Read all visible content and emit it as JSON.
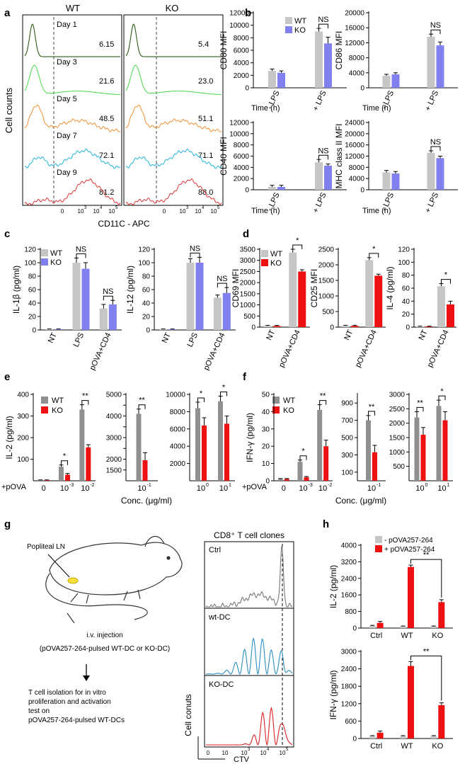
{
  "panel_labels": {
    "a": "a",
    "b": "b",
    "c": "c",
    "d": "d",
    "e": "e",
    "f": "f",
    "g": "g",
    "h": "h"
  },
  "colors": {
    "wt": "#c6c6c6",
    "ko_blue": "#8080ee",
    "ko_red": "#ee1111",
    "wt_dark": "#909090",
    "day1": "#2e5a14",
    "day3": "#55dd55",
    "day5": "#ee9944",
    "day7": "#33bbdd",
    "day9": "#dd4444"
  },
  "panel_a": {
    "col_titles": [
      "WT",
      "KO"
    ],
    "y_title": "Cell counts",
    "x_title": "CD11C - APC",
    "x_ticks": [
      "0",
      "10",
      "10",
      "10",
      "10"
    ],
    "x_exps": [
      "",
      "3",
      "4",
      "5"
    ],
    "rows": [
      {
        "day": "Day 1",
        "wt": "6.15",
        "ko": "5.4"
      },
      {
        "day": "Day 3",
        "wt": "21.6",
        "ko": "23.0"
      },
      {
        "day": "Day 5",
        "wt": "48.5",
        "ko": "51.1"
      },
      {
        "day": "Day 7",
        "wt": "72.1",
        "ko": "71.1"
      },
      {
        "day": "Day 9",
        "wt": "81.2",
        "ko": "88.0"
      }
    ]
  },
  "texts": {
    "time_h": "Time (h)",
    "nt": "NT",
    "lps": "LPS",
    "povacd4": "pOVA+CD4",
    "neg_lps": "- LPS",
    "pos_lps": "+ LPS",
    "plus_pova": "+pOVA",
    "conc": "Conc. (μg/ml)",
    "ctrl": "Ctrl",
    "wt": "WT",
    "ko": "KO"
  },
  "panel_g": {
    "popliteal": "Popliteal LN",
    "iv": "i.v. injection",
    "pulsed": "(pOVA257-264-pulsed WT-DC or KO-DC)",
    "tcell_lines": [
      "T cell isolation for in vitro",
      "proliferation and activation",
      "test on",
      "pOVA257-264-pulsed WT-DCs"
    ],
    "clones_title": "CD8⁺ T cell clones",
    "clone_labels": [
      "Ctrl",
      "wt-DC",
      "KO-DC"
    ],
    "y_title": "Cell conuts",
    "x_title": "CTV"
  },
  "chart_data": [
    {
      "id": "b1",
      "type": "bar",
      "ylabel": "CD80 MFI",
      "ylim": [
        0,
        12000
      ],
      "ticks": [
        0,
        2000,
        4000,
        6000,
        8000,
        10000,
        12000
      ],
      "categories": [
        "- LPS",
        "+ LPS"
      ],
      "series": [
        {
          "name": "WT",
          "values": [
            2700,
            9000
          ],
          "err": [
            300,
            500
          ]
        },
        {
          "name": "KO",
          "values": [
            2400,
            7100
          ],
          "err": [
            300,
            1000
          ]
        }
      ],
      "sig": [
        {
          "cat": 1,
          "label": "NS"
        }
      ]
    },
    {
      "id": "b2",
      "type": "bar",
      "ylabel": "CD86 MFI",
      "ylim": [
        0,
        20000
      ],
      "ticks": [
        0,
        4000,
        8000,
        12000,
        16000,
        20000
      ],
      "categories": [
        "- LPS",
        "+ LPS"
      ],
      "series": [
        {
          "name": "WT",
          "values": [
            3200,
            13600
          ],
          "err": [
            400,
            700
          ]
        },
        {
          "name": "KO",
          "values": [
            3600,
            11300
          ],
          "err": [
            400,
            900
          ]
        }
      ],
      "sig": [
        {
          "cat": 1,
          "label": "NS"
        }
      ]
    },
    {
      "id": "b3",
      "type": "bar",
      "ylabel": "CD40 MFI",
      "ylim": [
        0,
        12000
      ],
      "ticks": [
        0,
        2000,
        4000,
        6000,
        8000,
        10000,
        12000
      ],
      "categories": [
        "- LPS",
        "+ LPS"
      ],
      "series": [
        {
          "name": "WT",
          "values": [
            500,
            4900
          ],
          "err": [
            300,
            500
          ]
        },
        {
          "name": "KO",
          "values": [
            500,
            4300
          ],
          "err": [
            300,
            300
          ]
        }
      ],
      "sig": [
        {
          "cat": 1,
          "label": "NS"
        }
      ]
    },
    {
      "id": "b4",
      "type": "bar",
      "ylabel": "MHC class II  MFI",
      "ylim": [
        0,
        24000
      ],
      "ticks": [
        0,
        4000,
        8000,
        12000,
        16000,
        20000,
        24000
      ],
      "categories": [
        "- LPS",
        "+ LPS"
      ],
      "series": [
        {
          "name": "WT",
          "values": [
            6200,
            13200
          ],
          "err": [
            700,
            700
          ]
        },
        {
          "name": "KO",
          "values": [
            5800,
            11300
          ],
          "err": [
            700,
            700
          ]
        }
      ],
      "sig": [
        {
          "cat": 1,
          "label": "NS"
        }
      ]
    },
    {
      "id": "c1",
      "type": "bar",
      "ylabel": "IL-1β (pg/ml)",
      "ylim": [
        0,
        120
      ],
      "ticks": [
        0,
        20,
        40,
        60,
        80,
        100,
        120
      ],
      "categories": [
        "NT",
        "LPS",
        "pOVA+CD4"
      ],
      "series": [
        {
          "name": "WT",
          "values": [
            1,
            100,
            32
          ],
          "err": [
            0.5,
            7,
            6
          ]
        },
        {
          "name": "KO",
          "values": [
            1,
            91,
            38
          ],
          "err": [
            0.5,
            9,
            6
          ]
        }
      ],
      "sig": [
        {
          "cat": 1,
          "label": "NS"
        },
        {
          "cat": 2,
          "label": "NS"
        }
      ]
    },
    {
      "id": "c2",
      "type": "bar",
      "ylabel": "IL-12 (pg/ml)",
      "ylim": [
        0,
        120
      ],
      "ticks": [
        0,
        20,
        40,
        60,
        80,
        100,
        120
      ],
      "categories": [
        "NT",
        "LPS",
        "pOVA+CD4"
      ],
      "series": [
        {
          "name": "WT",
          "values": [
            1,
            100,
            48
          ],
          "err": [
            0.5,
            6,
            4
          ]
        },
        {
          "name": "KO",
          "values": [
            1,
            100,
            55
          ],
          "err": [
            0.5,
            8,
            8
          ]
        }
      ],
      "sig": [
        {
          "cat": 1,
          "label": "NS"
        },
        {
          "cat": 2,
          "label": "NS"
        }
      ]
    },
    {
      "id": "d1",
      "type": "bar",
      "ylabel": "CD69 MFI",
      "ylim": [
        0,
        3500
      ],
      "ticks": [
        0,
        500,
        1000,
        1500,
        2000,
        2500,
        3000,
        3500
      ],
      "categories": [
        "NT",
        "pOVA+CD4"
      ],
      "series": [
        {
          "name": "WT",
          "values": [
            50,
            3350
          ],
          "err": [
            30,
            150
          ]
        },
        {
          "name": "KO",
          "values": [
            50,
            2500
          ],
          "err": [
            30,
            80
          ]
        }
      ],
      "sig": [
        {
          "cat": 1,
          "label": "*"
        }
      ]
    },
    {
      "id": "d2",
      "type": "bar",
      "ylabel": "CD25 MFI",
      "ylim": [
        0,
        2500
      ],
      "ticks": [
        0,
        500,
        1000,
        1500,
        2000,
        2500
      ],
      "categories": [
        "NT",
        "pOVA+CD4"
      ],
      "series": [
        {
          "name": "WT",
          "values": [
            40,
            2150
          ],
          "err": [
            20,
            80
          ]
        },
        {
          "name": "KO",
          "values": [
            40,
            1650
          ],
          "err": [
            20,
            50
          ]
        }
      ],
      "sig": [
        {
          "cat": 1,
          "label": "*"
        }
      ]
    },
    {
      "id": "d3",
      "type": "bar",
      "ylabel": "IL-4 (pg/ml)",
      "ylim": [
        0,
        120
      ],
      "ticks": [
        0,
        20,
        40,
        60,
        80,
        100,
        120
      ],
      "categories": [
        "NT",
        "pOVA+CD4"
      ],
      "series": [
        {
          "name": "WT",
          "values": [
            1,
            63
          ],
          "err": [
            0.5,
            4
          ]
        },
        {
          "name": "KO",
          "values": [
            1,
            35
          ],
          "err": [
            0.5,
            5
          ]
        }
      ],
      "sig": [
        {
          "cat": 1,
          "label": "*"
        }
      ]
    },
    {
      "id": "e1",
      "type": "bar",
      "ylabel": "IL-2 (pg/ml)",
      "ylim": [
        0,
        400
      ],
      "ticks": [
        100,
        200,
        300,
        400
      ],
      "categories": [
        "0",
        "10-3",
        "10-2"
      ],
      "series": [
        {
          "name": "WT",
          "values": [
            3,
            65,
            330
          ],
          "err": [
            1,
            8,
            22
          ]
        },
        {
          "name": "KO",
          "values": [
            3,
            28,
            155
          ],
          "err": [
            1,
            6,
            12
          ]
        }
      ],
      "sig": [
        {
          "cat": 1,
          "label": "*"
        },
        {
          "cat": 2,
          "label": "**"
        }
      ]
    },
    {
      "id": "e2",
      "type": "bar",
      "ylabel": "",
      "ylim": [
        1000,
        5000
      ],
      "ticks": [
        1500,
        2000,
        2500,
        3000,
        3500,
        4000,
        4500,
        5000
      ],
      "tick_labels": [
        "1500",
        "2000",
        "",
        "3000",
        "",
        "4000",
        "",
        "5000"
      ],
      "categories": [
        "10-1"
      ],
      "series": [
        {
          "name": "WT",
          "values": [
            4100
          ],
          "err": [
            220
          ]
        },
        {
          "name": "KO",
          "values": [
            1950
          ],
          "err": [
            350
          ]
        }
      ],
      "sig": [
        {
          "cat": 0,
          "label": "**"
        }
      ]
    },
    {
      "id": "e3",
      "type": "bar",
      "ylabel": "",
      "ylim": [
        0,
        10000
      ],
      "ticks": [
        2000,
        4000,
        6000,
        8000,
        10000
      ],
      "categories": [
        "100",
        "101"
      ],
      "series": [
        {
          "name": "WT",
          "values": [
            8400,
            9200
          ],
          "err": [
            700,
            600
          ]
        },
        {
          "name": "KO",
          "values": [
            6400,
            6600
          ],
          "err": [
            900,
            900
          ]
        }
      ],
      "sig": [
        {
          "cat": 0,
          "label": "*"
        },
        {
          "cat": 1,
          "label": "*"
        }
      ]
    },
    {
      "id": "f1",
      "type": "bar",
      "ylabel": "IFN-γ (pg/ml)",
      "ylim": [
        0,
        50
      ],
      "ticks": [
        0,
        10,
        20,
        30,
        40,
        50
      ],
      "categories": [
        "0",
        "10-3",
        "10-2"
      ],
      "series": [
        {
          "name": "WT",
          "values": [
            1,
            11,
            41
          ],
          "err": [
            0.3,
            1,
            3
          ]
        },
        {
          "name": "KO",
          "values": [
            1,
            2,
            20
          ],
          "err": [
            0.3,
            0.5,
            3.5
          ]
        }
      ],
      "sig": [
        {
          "cat": 1,
          "label": "*"
        },
        {
          "cat": 2,
          "label": "**"
        }
      ]
    },
    {
      "id": "f2",
      "type": "bar",
      "ylabel": "",
      "ylim": [
        0,
        1000
      ],
      "ticks": [
        100,
        300,
        500,
        700,
        900
      ],
      "categories": [
        "10-1"
      ],
      "series": [
        {
          "name": "WT",
          "values": [
            700
          ]
        },
        {
          "name": "KO",
          "values": [
            330
          ]
        }
      ],
      "err_all": [
        [
          55
        ],
        [
          80
        ]
      ],
      "sig": [
        {
          "cat": 0,
          "label": "**"
        }
      ]
    },
    {
      "id": "f3",
      "type": "bar",
      "ylabel": "",
      "ylim": [
        0,
        3000
      ],
      "ticks": [
        500,
        1000,
        1500,
        2000,
        2500,
        3000
      ],
      "categories": [
        "100",
        "101"
      ],
      "series": [
        {
          "name": "WT",
          "values": [
            2200,
            2600
          ],
          "err": [
            200,
            200
          ]
        },
        {
          "name": "KO",
          "values": [
            1600,
            2100
          ],
          "err": [
            250,
            300
          ]
        }
      ],
      "sig": [
        {
          "cat": 0,
          "label": "**"
        },
        {
          "cat": 1,
          "label": "*"
        }
      ]
    },
    {
      "id": "h1",
      "type": "bar",
      "ylabel": "IL-2 (pg/ml)",
      "ylim": [
        0,
        4000
      ],
      "ticks": [
        0,
        800,
        1600,
        2400,
        3200,
        4000
      ],
      "categories": [
        "Ctrl",
        "WT",
        "KO"
      ],
      "series": [
        {
          "name": "- pOVA257-264",
          "values": [
            100,
            80,
            80
          ],
          "err": [
            30,
            20,
            20
          ]
        },
        {
          "name": "+ pOVA257-264",
          "values": [
            250,
            2950,
            1250
          ],
          "err": [
            70,
            90,
            120
          ]
        }
      ],
      "sig_between": {
        "from": 1,
        "to": 2,
        "label": "**"
      }
    },
    {
      "id": "h2",
      "type": "bar",
      "ylabel": "IFN-γ (pg/ml)",
      "ylim": [
        0,
        3000
      ],
      "ticks": [
        0,
        600,
        1200,
        1800,
        2400,
        3000
      ],
      "categories": [
        "Ctrl",
        "WT",
        "KO"
      ],
      "series": [
        {
          "name": "- pOVA257-264",
          "values": [
            80,
            80,
            80
          ],
          "err": [
            20,
            20,
            20
          ]
        },
        {
          "name": "+ pOVA257-264",
          "values": [
            200,
            2500,
            1150
          ],
          "err": [
            60,
            150,
            80
          ]
        }
      ],
      "sig_between": {
        "from": 1,
        "to": 2,
        "label": "**"
      }
    }
  ]
}
